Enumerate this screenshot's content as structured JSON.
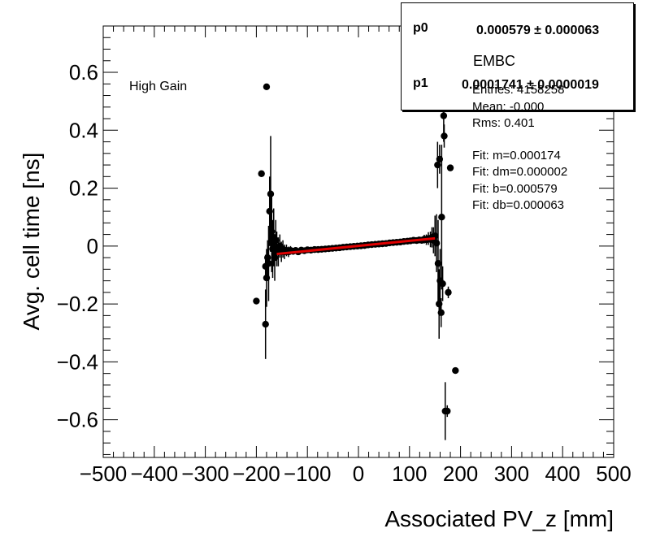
{
  "annotation": "High Gain",
  "fit_box": {
    "p0_label": "p0",
    "p0_value": "0.000579 ± 0.000063",
    "p1_label": "p1",
    "p1_value": "0.0001741 ± 0.0000019"
  },
  "stats": {
    "title": "EMBC",
    "entries": "Entries: 4158258",
    "mean": "Mean: -0.000",
    "rms": "Rms: 0.401",
    "fit_m": "Fit: m=0.000174",
    "fit_dm": "Fit: dm=0.000002",
    "fit_b": "Fit: b=0.000579",
    "fit_db": "Fit: db=0.000063"
  },
  "chart_data": {
    "type": "scatter",
    "title": "",
    "xlabel": "Associated PV_z [mm]",
    "ylabel": "Avg. cell time [ns]",
    "xlim": [
      -500,
      500
    ],
    "ylim": [
      -0.73,
      0.76
    ],
    "xticks": [
      -500,
      -400,
      -300,
      -200,
      -100,
      0,
      100,
      200,
      300,
      400,
      500
    ],
    "xtick_labels": [
      "−500",
      "−400",
      "−300",
      "−200",
      "−100",
      "0",
      "100",
      "200",
      "300",
      "400",
      "500"
    ],
    "yticks": [
      -0.6,
      -0.4,
      -0.2,
      0,
      0.2,
      0.4,
      0.6
    ],
    "ytick_labels": [
      "−0.6",
      "−0.4",
      "−0.2",
      "0",
      "0.2",
      "0.4",
      "0.6"
    ],
    "series": [
      {
        "name": "EMBC",
        "points": [
          {
            "x": -200,
            "y": -0.19,
            "e": 0.01
          },
          {
            "x": -190,
            "y": 0.25,
            "e": 0.01
          },
          {
            "x": -180,
            "y": 0.55,
            "e": 0.01
          },
          {
            "x": -182,
            "y": -0.07,
            "e": 0.04
          },
          {
            "x": -182,
            "y": -0.27,
            "e": 0.12
          },
          {
            "x": -180,
            "y": -0.11,
            "e": 0.1
          },
          {
            "x": -178,
            "y": -0.04,
            "e": 0.06
          },
          {
            "x": -176,
            "y": -0.06,
            "e": 0.13
          },
          {
            "x": -174,
            "y": 0.12,
            "e": 0.12
          },
          {
            "x": -172,
            "y": 0.18,
            "e": 0.2
          },
          {
            "x": -170,
            "y": 0.05,
            "e": 0.14
          },
          {
            "x": -168,
            "y": -0.01,
            "e": 0.1
          },
          {
            "x": -166,
            "y": 0.03,
            "e": 0.1
          },
          {
            "x": -164,
            "y": -0.04,
            "e": 0.08
          },
          {
            "x": -162,
            "y": 0.02,
            "e": 0.07
          },
          {
            "x": -160,
            "y": -0.01,
            "e": 0.06
          },
          {
            "x": -157,
            "y": -0.02,
            "e": 0.05
          },
          {
            "x": -154,
            "y": 0.0,
            "e": 0.04
          },
          {
            "x": -151,
            "y": -0.02,
            "e": 0.035
          },
          {
            "x": -148,
            "y": -0.01,
            "e": 0.03
          },
          {
            "x": -145,
            "y": -0.02,
            "e": 0.025
          },
          {
            "x": -141,
            "y": -0.015,
            "e": 0.02
          },
          {
            "x": -137,
            "y": -0.02,
            "e": 0.018
          },
          {
            "x": -133,
            "y": -0.015,
            "e": 0.015
          },
          {
            "x": -128,
            "y": -0.018,
            "e": 0.012
          },
          {
            "x": -123,
            "y": -0.015,
            "e": 0.01
          },
          {
            "x": -118,
            "y": -0.02,
            "e": 0.008
          },
          {
            "x": -112,
            "y": -0.014,
            "e": 0.007
          },
          {
            "x": -106,
            "y": -0.016,
            "e": 0.006
          },
          {
            "x": -100,
            "y": -0.013,
            "e": 0.005
          },
          {
            "x": -93,
            "y": -0.014,
            "e": 0.004
          },
          {
            "x": -86,
            "y": -0.012,
            "e": 0.004
          },
          {
            "x": -79,
            "y": -0.012,
            "e": 0.004
          },
          {
            "x": -72,
            "y": -0.011,
            "e": 0.003
          },
          {
            "x": -65,
            "y": -0.01,
            "e": 0.003
          },
          {
            "x": -58,
            "y": -0.009,
            "e": 0.003
          },
          {
            "x": -51,
            "y": -0.008,
            "e": 0.003
          },
          {
            "x": -44,
            "y": -0.007,
            "e": 0.003
          },
          {
            "x": -37,
            "y": -0.006,
            "e": 0.003
          },
          {
            "x": -30,
            "y": -0.004,
            "e": 0.003
          },
          {
            "x": -23,
            "y": -0.003,
            "e": 0.003
          },
          {
            "x": -16,
            "y": -0.002,
            "e": 0.003
          },
          {
            "x": -9,
            "y": -0.001,
            "e": 0.003
          },
          {
            "x": -2,
            "y": 0.0,
            "e": 0.003
          },
          {
            "x": 5,
            "y": 0.001,
            "e": 0.003
          },
          {
            "x": 12,
            "y": 0.002,
            "e": 0.003
          },
          {
            "x": 19,
            "y": 0.004,
            "e": 0.003
          },
          {
            "x": 26,
            "y": 0.005,
            "e": 0.003
          },
          {
            "x": 33,
            "y": 0.006,
            "e": 0.003
          },
          {
            "x": 40,
            "y": 0.007,
            "e": 0.003
          },
          {
            "x": 47,
            "y": 0.008,
            "e": 0.003
          },
          {
            "x": 54,
            "y": 0.009,
            "e": 0.003
          },
          {
            "x": 61,
            "y": 0.011,
            "e": 0.003
          },
          {
            "x": 68,
            "y": 0.012,
            "e": 0.003
          },
          {
            "x": 75,
            "y": 0.013,
            "e": 0.004
          },
          {
            "x": 82,
            "y": 0.014,
            "e": 0.004
          },
          {
            "x": 89,
            "y": 0.016,
            "e": 0.004
          },
          {
            "x": 96,
            "y": 0.017,
            "e": 0.005
          },
          {
            "x": 102,
            "y": 0.018,
            "e": 0.006
          },
          {
            "x": 108,
            "y": 0.02,
            "e": 0.007
          },
          {
            "x": 114,
            "y": 0.019,
            "e": 0.008
          },
          {
            "x": 119,
            "y": 0.021,
            "e": 0.01
          },
          {
            "x": 124,
            "y": 0.02,
            "e": 0.012
          },
          {
            "x": 129,
            "y": 0.024,
            "e": 0.015
          },
          {
            "x": 133,
            "y": 0.022,
            "e": 0.018
          },
          {
            "x": 137,
            "y": 0.026,
            "e": 0.022
          },
          {
            "x": 141,
            "y": 0.023,
            "e": 0.027
          },
          {
            "x": 144,
            "y": 0.03,
            "e": 0.035
          },
          {
            "x": 147,
            "y": 0.02,
            "e": 0.045
          },
          {
            "x": 150,
            "y": 0.035,
            "e": 0.07
          },
          {
            "x": 153,
            "y": 0.01,
            "e": 0.1
          },
          {
            "x": 155,
            "y": 0.28,
            "e": 0.08
          },
          {
            "x": 156,
            "y": -0.06,
            "e": 0.15
          },
          {
            "x": 158,
            "y": -0.2,
            "e": 0.12
          },
          {
            "x": 159,
            "y": 0.3,
            "e": 0.05
          },
          {
            "x": 160,
            "y": -0.12,
            "e": 0.11
          },
          {
            "x": 162,
            "y": -0.23,
            "e": 0.05
          },
          {
            "x": 163,
            "y": 0.1,
            "e": 0.25
          },
          {
            "x": 165,
            "y": -0.13,
            "e": 0.06
          },
          {
            "x": 167,
            "y": 0.45,
            "e": 0.09
          },
          {
            "x": 168,
            "y": 0.38,
            "e": 0.04
          },
          {
            "x": 170,
            "y": -0.57,
            "e": 0.1
          },
          {
            "x": 174,
            "y": -0.57,
            "e": 0.02
          },
          {
            "x": 176,
            "y": -0.16,
            "e": 0.02
          },
          {
            "x": 180,
            "y": 0.27,
            "e": 0.01
          },
          {
            "x": 190,
            "y": -0.43,
            "e": 0.01
          }
        ]
      }
    ],
    "fit": {
      "name": "linear fit",
      "slope": 0.0001741,
      "intercept": 0.000579,
      "x_range": [
        -160,
        150
      ],
      "color": "#e00000"
    }
  }
}
